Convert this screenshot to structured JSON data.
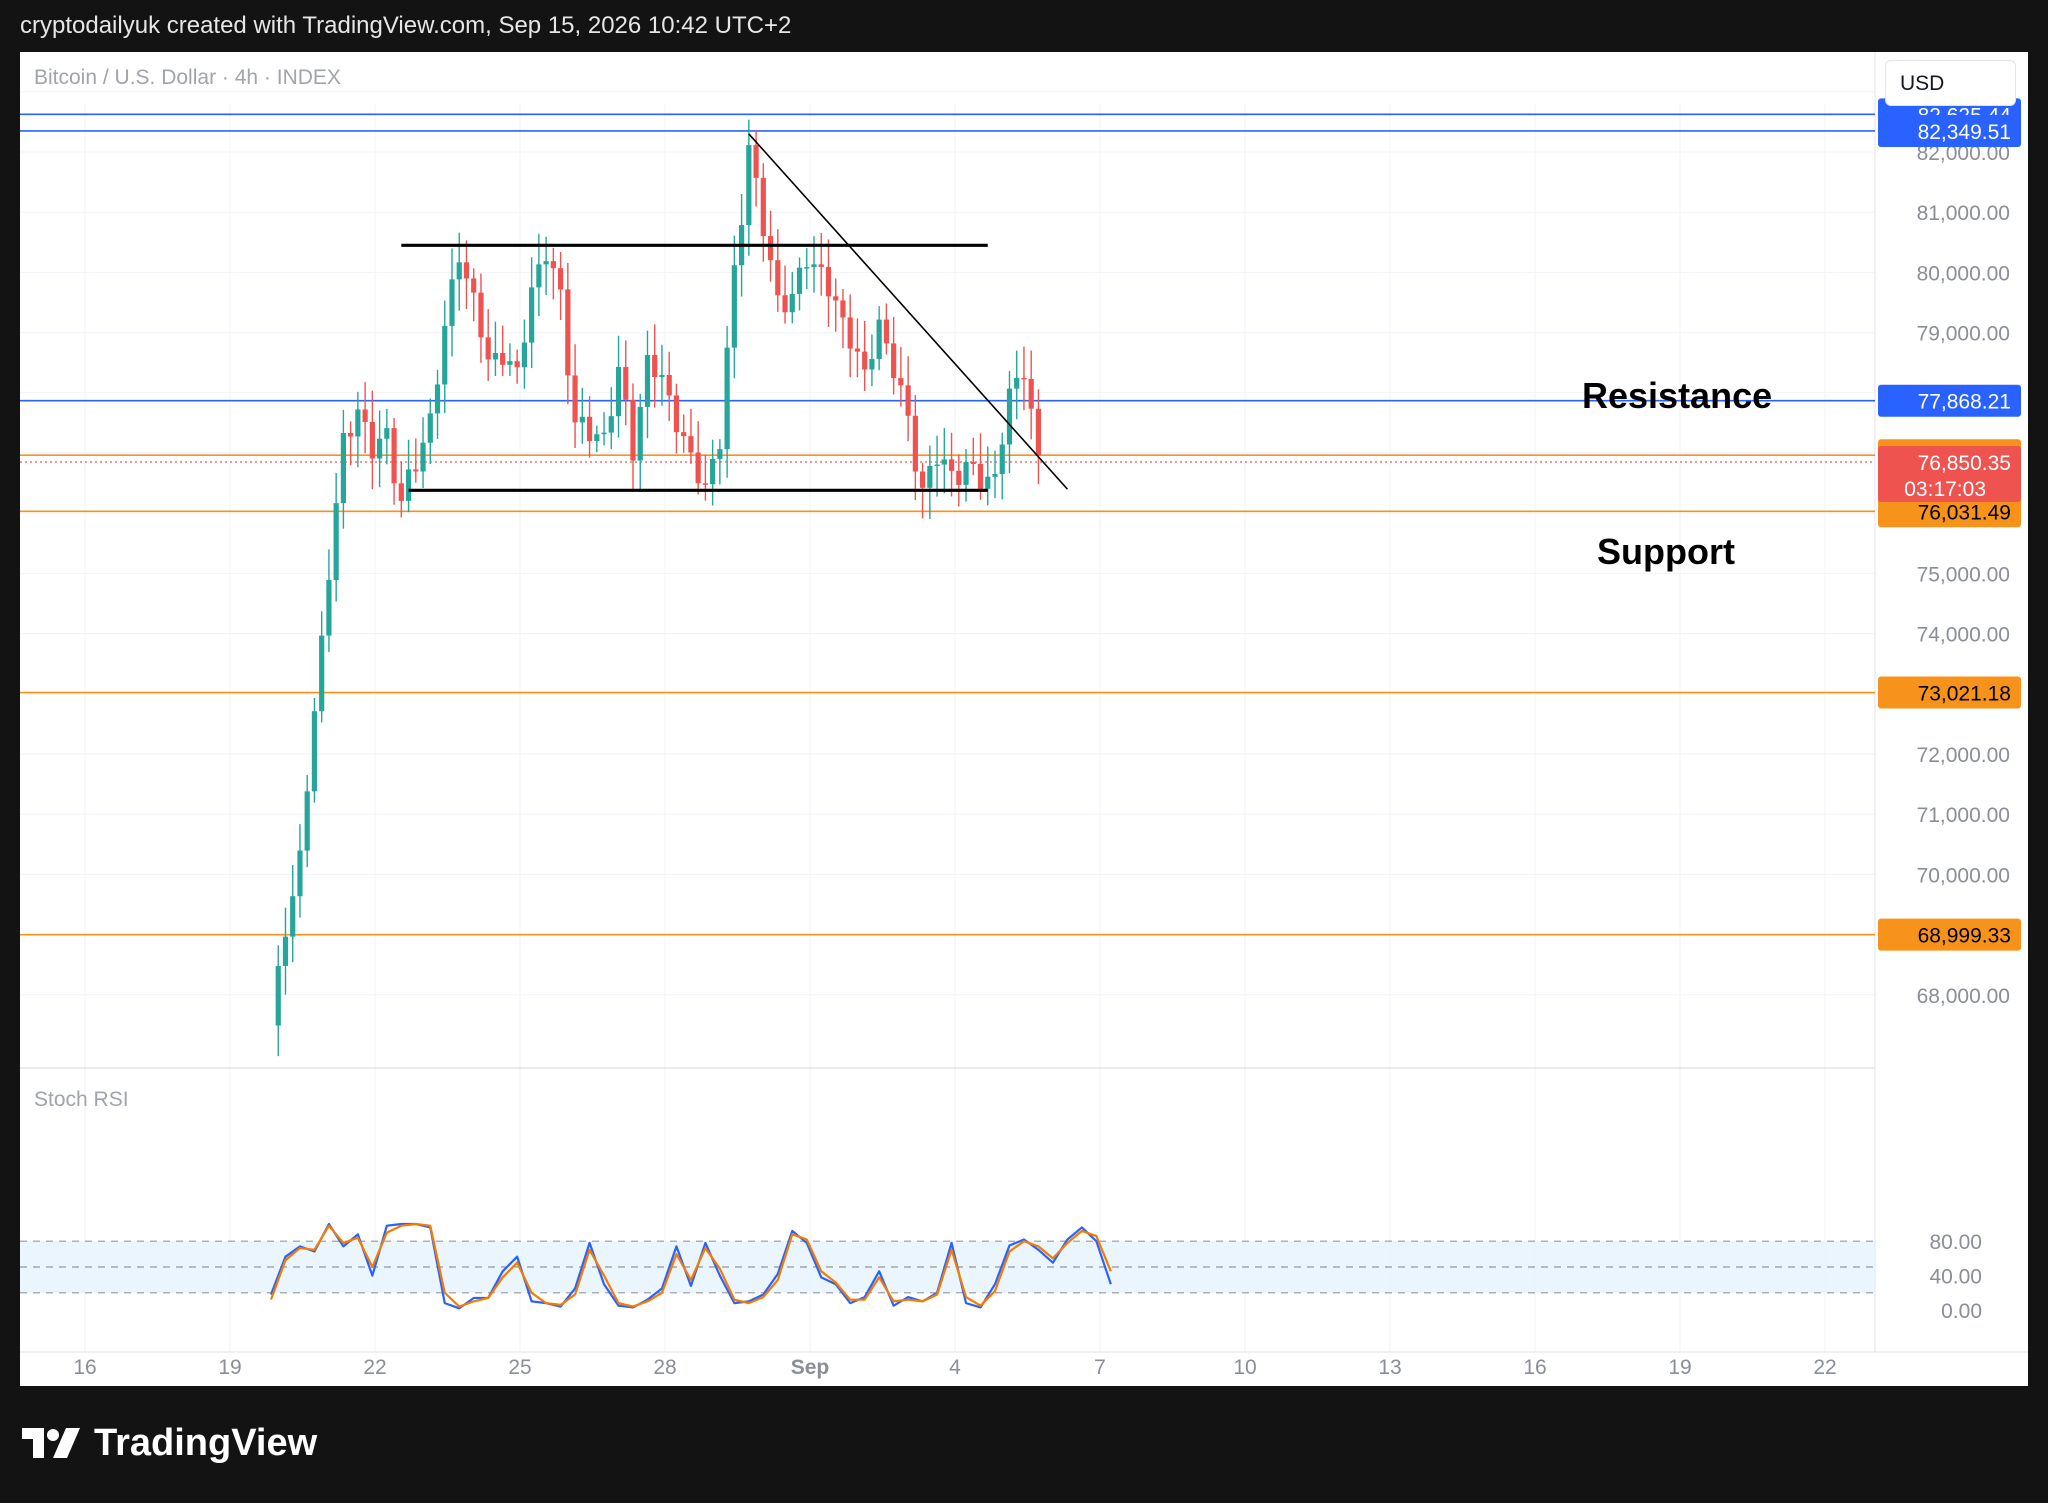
{
  "header": {
    "text": "cryptodailyuk created with TradingView.com, Sep 15, 2026 10:42 UTC+2"
  },
  "symbol": {
    "text": "Bitcoin / U.S. Dollar · 4h · INDEX"
  },
  "currency": {
    "label": "USD"
  },
  "footer": {
    "brand": "TradingView"
  },
  "annotations": {
    "resistance": "Resistance",
    "support": "Support"
  },
  "colors": {
    "up": "#26a69a",
    "down": "#ef5350",
    "blue_level": "#2962ff",
    "orange_level": "#f7931a",
    "rsi_k": "#2962ff",
    "rsi_d": "#f57c00",
    "rsi_band": "#e3f2fd"
  },
  "chart_data": [
    {
      "type": "candlestick",
      "title": "Bitcoin / U.S. Dollar · 4h · INDEX",
      "y_ticks": [
        "82,000.00",
        "81,000.00",
        "80,000.00",
        "79,000.00",
        "75,000.00",
        "74,000.00",
        "72,000.00",
        "71,000.00",
        "70,000.00",
        "68,000.00"
      ],
      "y_tick_values": [
        82000,
        81000,
        80000,
        79000,
        75000,
        74000,
        72000,
        71000,
        70000,
        68000
      ],
      "x_ticks": [
        "16",
        "19",
        "22",
        "25",
        "28",
        "Sep",
        "4",
        "7",
        "10",
        "13",
        "16",
        "19",
        "22"
      ],
      "ylim": [
        67000,
        83500
      ],
      "candle_anchors": [
        [
          0,
          67400
        ],
        [
          2,
          69200
        ],
        [
          4,
          70200
        ],
        [
          6,
          72700
        ],
        [
          8,
          75100
        ],
        [
          10,
          77100
        ],
        [
          12,
          77800
        ],
        [
          14,
          77000
        ],
        [
          16,
          77300
        ],
        [
          18,
          76200
        ],
        [
          20,
          76800
        ],
        [
          22,
          77600
        ],
        [
          24,
          79000
        ],
        [
          26,
          80400
        ],
        [
          28,
          79500
        ],
        [
          30,
          78500
        ],
        [
          32,
          78700
        ],
        [
          34,
          78200
        ],
        [
          36,
          79800
        ],
        [
          38,
          80300
        ],
        [
          40,
          79600
        ],
        [
          42,
          77500
        ],
        [
          44,
          77300
        ],
        [
          46,
          77300
        ],
        [
          48,
          78300
        ],
        [
          50,
          77100
        ],
        [
          52,
          78500
        ],
        [
          54,
          78200
        ],
        [
          56,
          77600
        ],
        [
          58,
          76800
        ],
        [
          60,
          76500
        ],
        [
          62,
          77200
        ],
        [
          64,
          80000
        ],
        [
          66,
          82100
        ],
        [
          68,
          80700
        ],
        [
          70,
          79600
        ],
        [
          72,
          79500
        ],
        [
          74,
          80300
        ],
        [
          76,
          80000
        ],
        [
          78,
          79400
        ],
        [
          80,
          79000
        ],
        [
          82,
          78200
        ],
        [
          84,
          79200
        ],
        [
          86,
          78400
        ],
        [
          88,
          77500
        ],
        [
          90,
          76400
        ],
        [
          92,
          76900
        ],
        [
          94,
          76700
        ],
        [
          96,
          76700
        ],
        [
          98,
          76600
        ],
        [
          100,
          76600
        ],
        [
          102,
          77900
        ],
        [
          104,
          78500
        ],
        [
          106,
          76800
        ]
      ],
      "horizontal_levels": [
        {
          "price": 82625.44,
          "label": "82,625.44",
          "color": "blue"
        },
        {
          "price": 82349.51,
          "label": "82,349.51",
          "color": "blue"
        },
        {
          "price": 77868.21,
          "label": "77,868.21",
          "color": "blue"
        },
        {
          "price": 76963.41,
          "label": "76,963.41",
          "color": "orange"
        },
        {
          "price": 76031.49,
          "label": "76,031.49",
          "color": "orange"
        },
        {
          "price": 73021.18,
          "label": "73,021.18",
          "color": "orange"
        },
        {
          "price": 68999.33,
          "label": "68,999.33",
          "color": "orange"
        }
      ],
      "current_price": {
        "price": 76850.35,
        "label": "76,850.35",
        "countdown": "03:17:03"
      },
      "drawings": [
        {
          "name": "range-top",
          "from": [
            18,
            80450
          ],
          "to": [
            99,
            80450
          ]
        },
        {
          "name": "range-bottom",
          "from": [
            19,
            76380
          ],
          "to": [
            99,
            76380
          ]
        },
        {
          "name": "descending-trendline",
          "from": [
            66,
            82300
          ],
          "to": [
            110,
            76400
          ]
        }
      ]
    },
    {
      "type": "line",
      "title": "Stoch RSI",
      "y_ticks": [
        "80.00",
        "40.00",
        "0.00"
      ],
      "y_tick_values": [
        80,
        40,
        0
      ],
      "band": [
        20,
        80
      ],
      "ylim": [
        -5,
        100
      ],
      "series": [
        {
          "name": "K",
          "anchors": [
            [
              0,
              18
            ],
            [
              2,
              62
            ],
            [
              4,
              74
            ],
            [
              6,
              68
            ],
            [
              8,
              100
            ],
            [
              10,
              74
            ],
            [
              12,
              88
            ],
            [
              14,
              40
            ],
            [
              16,
              98
            ],
            [
              18,
              100
            ],
            [
              20,
              100
            ],
            [
              22,
              96
            ],
            [
              24,
              8
            ],
            [
              26,
              2
            ],
            [
              28,
              14
            ],
            [
              30,
              14
            ],
            [
              32,
              45
            ],
            [
              34,
              62
            ],
            [
              36,
              10
            ],
            [
              38,
              8
            ],
            [
              40,
              4
            ],
            [
              42,
              25
            ],
            [
              44,
              78
            ],
            [
              46,
              30
            ],
            [
              48,
              5
            ],
            [
              50,
              3
            ],
            [
              52,
              12
            ],
            [
              54,
              25
            ],
            [
              56,
              74
            ],
            [
              58,
              28
            ],
            [
              60,
              78
            ],
            [
              62,
              40
            ],
            [
              64,
              8
            ],
            [
              66,
              10
            ],
            [
              68,
              18
            ],
            [
              70,
              42
            ],
            [
              72,
              92
            ],
            [
              74,
              78
            ],
            [
              76,
              38
            ],
            [
              78,
              30
            ],
            [
              80,
              8
            ],
            [
              82,
              15
            ],
            [
              84,
              45
            ],
            [
              86,
              5
            ],
            [
              88,
              15
            ],
            [
              90,
              10
            ],
            [
              92,
              20
            ],
            [
              94,
              78
            ],
            [
              96,
              8
            ],
            [
              98,
              3
            ],
            [
              100,
              30
            ],
            [
              102,
              75
            ],
            [
              104,
              82
            ],
            [
              106,
              70
            ],
            [
              108,
              55
            ],
            [
              110,
              82
            ],
            [
              112,
              96
            ],
            [
              114,
              80
            ],
            [
              116,
              30
            ]
          ]
        },
        {
          "name": "D",
          "anchors": [
            [
              0,
              12
            ],
            [
              2,
              58
            ],
            [
              4,
              72
            ],
            [
              6,
              70
            ],
            [
              8,
              98
            ],
            [
              10,
              78
            ],
            [
              12,
              84
            ],
            [
              14,
              50
            ],
            [
              16,
              90
            ],
            [
              18,
              98
            ],
            [
              20,
              100
            ],
            [
              22,
              98
            ],
            [
              24,
              20
            ],
            [
              26,
              4
            ],
            [
              28,
              10
            ],
            [
              30,
              14
            ],
            [
              32,
              38
            ],
            [
              34,
              55
            ],
            [
              36,
              20
            ],
            [
              38,
              8
            ],
            [
              40,
              6
            ],
            [
              42,
              18
            ],
            [
              44,
              70
            ],
            [
              46,
              40
            ],
            [
              48,
              8
            ],
            [
              50,
              4
            ],
            [
              52,
              10
            ],
            [
              54,
              20
            ],
            [
              56,
              65
            ],
            [
              58,
              35
            ],
            [
              60,
              72
            ],
            [
              62,
              48
            ],
            [
              64,
              12
            ],
            [
              66,
              8
            ],
            [
              68,
              15
            ],
            [
              70,
              35
            ],
            [
              72,
              88
            ],
            [
              74,
              82
            ],
            [
              76,
              45
            ],
            [
              78,
              32
            ],
            [
              80,
              12
            ],
            [
              82,
              12
            ],
            [
              84,
              38
            ],
            [
              86,
              10
            ],
            [
              88,
              12
            ],
            [
              90,
              10
            ],
            [
              92,
              18
            ],
            [
              94,
              70
            ],
            [
              96,
              15
            ],
            [
              98,
              5
            ],
            [
              100,
              22
            ],
            [
              102,
              68
            ],
            [
              104,
              80
            ],
            [
              106,
              74
            ],
            [
              108,
              60
            ],
            [
              110,
              78
            ],
            [
              112,
              92
            ],
            [
              114,
              86
            ],
            [
              116,
              45
            ]
          ]
        }
      ]
    }
  ]
}
